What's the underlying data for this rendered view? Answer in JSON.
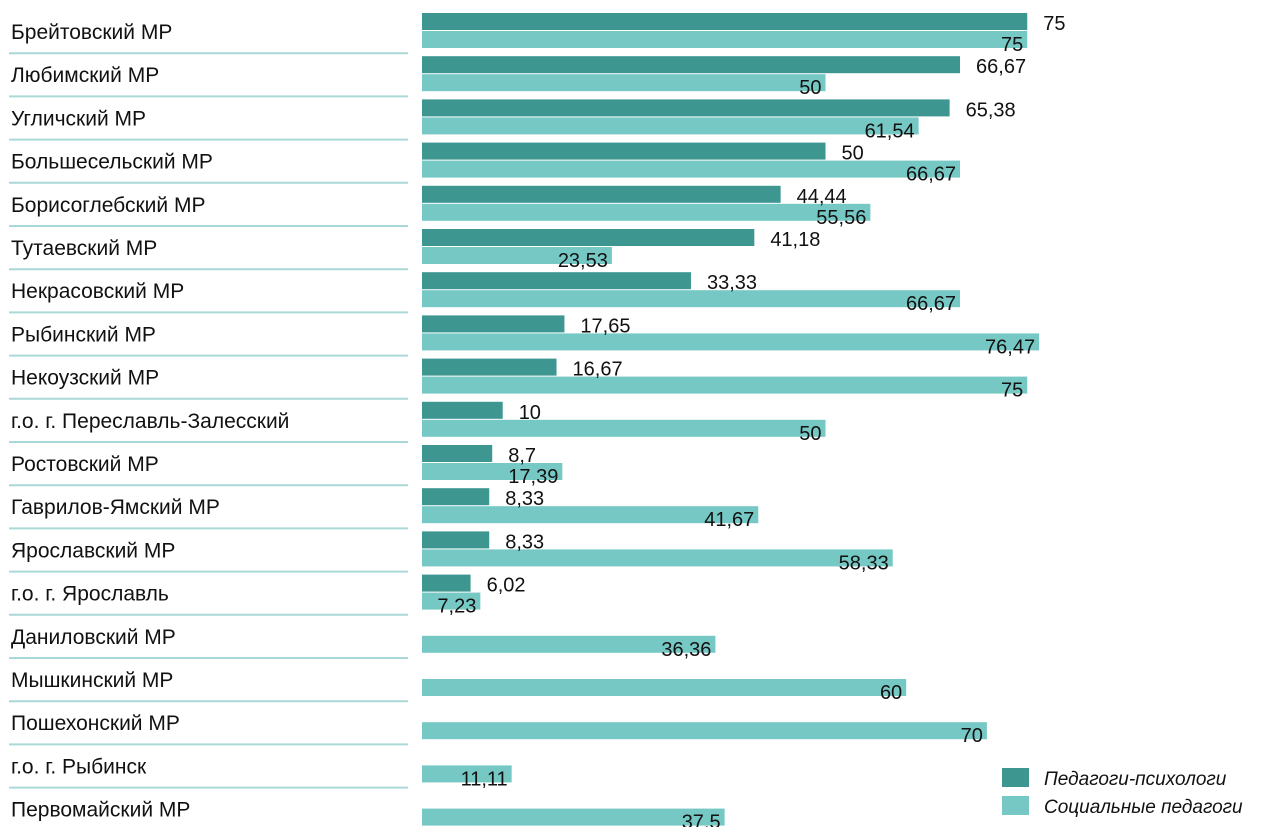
{
  "chart_data": {
    "type": "bar",
    "orientation": "horizontal",
    "categories": [
      "Брейтовский МР",
      "Любимский МР",
      "Угличский МР",
      "Большесельский МР",
      "Борисоглебский МР",
      "Тутаевский МР",
      "Некрасовский МР",
      "Рыбинский МР",
      "Некоузский МР",
      "г.о. г. Переславль-Залесский",
      "Ростовский МР",
      "Гаврилов-Ямский МР",
      "Ярославский МР",
      "г.о. г. Ярославль",
      "Даниловский МР",
      "Мышкинский МР",
      "Пошехонский МР",
      "г.о. г. Рыбинск",
      "Первомайский МР"
    ],
    "series": [
      {
        "name": "Педагоги-психологи",
        "color": "#3d9690",
        "values": [
          75,
          66.67,
          65.38,
          50,
          44.44,
          41.18,
          33.33,
          17.65,
          16.67,
          10,
          8.7,
          8.33,
          8.33,
          6.02,
          null,
          null,
          null,
          null,
          null
        ],
        "labels": [
          "75",
          "66,67",
          "65,38",
          "50",
          "44,44",
          "41,18",
          "33,33",
          "17,65",
          "16,67",
          "10",
          "8,7",
          "8,33",
          "8,33",
          "6,02",
          "",
          "",
          "",
          "",
          ""
        ]
      },
      {
        "name": "Социальные педагоги",
        "color": "#76c8c4",
        "values": [
          75,
          50,
          61.54,
          66.67,
          55.56,
          23.53,
          66.67,
          76.47,
          75,
          50,
          17.39,
          41.67,
          58.33,
          7.23,
          36.36,
          60,
          70,
          11.11,
          37.5
        ],
        "labels": [
          "75",
          "50",
          "61,54",
          "66,67",
          "55,56",
          "23,53",
          "66,67",
          "76,47",
          "75",
          "50",
          "17,39",
          "41,67",
          "58,33",
          "7,23",
          "36,36",
          "60",
          "70",
          "11,11",
          "37,5"
        ]
      }
    ],
    "xlim": [
      0,
      100
    ],
    "grid": false,
    "legend_position": "bottom-right",
    "separator_color": "#a9d9d6"
  }
}
